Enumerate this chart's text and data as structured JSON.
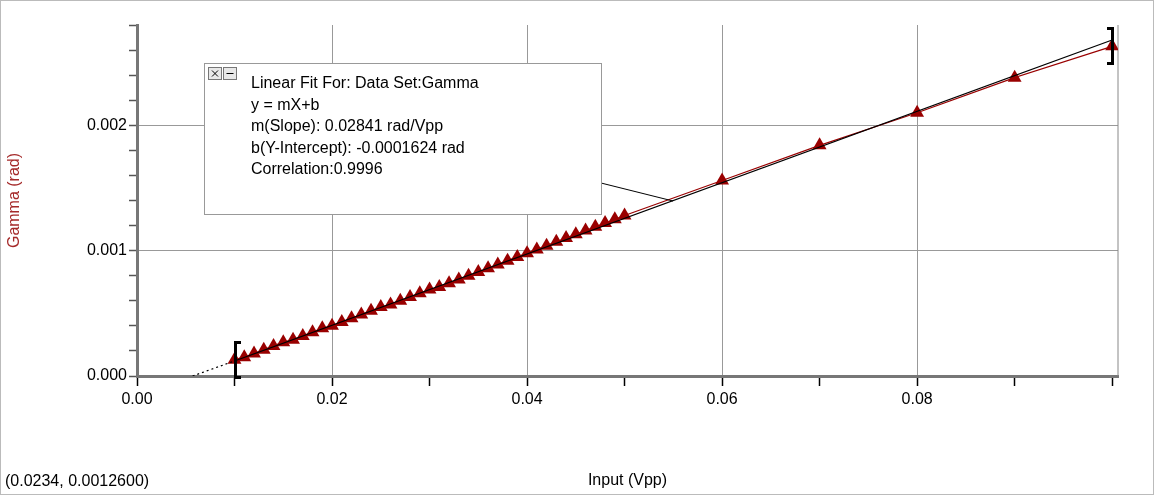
{
  "chart_data": {
    "type": "scatter",
    "xlabel": "Input (Vpp)",
    "ylabel": "Gamma (rad)",
    "xlim": [
      0,
      0.1006
    ],
    "ylim": [
      0,
      0.0028
    ],
    "xticks": [
      {
        "value": 0,
        "label": "0.00"
      },
      {
        "value": 0.01,
        "label": null
      },
      {
        "value": 0.02,
        "label": "0.02"
      },
      {
        "value": 0.03,
        "label": null
      },
      {
        "value": 0.04,
        "label": "0.04"
      },
      {
        "value": 0.05,
        "label": null
      },
      {
        "value": 0.06,
        "label": "0.06"
      },
      {
        "value": 0.07,
        "label": null
      },
      {
        "value": 0.08,
        "label": "0.08"
      },
      {
        "value": 0.09,
        "label": null
      },
      {
        "value": 0.1,
        "label": null
      }
    ],
    "yticks": [
      {
        "value": 0,
        "label": "0.000"
      },
      {
        "value": 0.0002,
        "label": null
      },
      {
        "value": 0.0004,
        "label": null
      },
      {
        "value": 0.0006,
        "label": null
      },
      {
        "value": 0.0008,
        "label": null
      },
      {
        "value": 0.001,
        "label": "0.001"
      },
      {
        "value": 0.0012,
        "label": null
      },
      {
        "value": 0.0014,
        "label": null
      },
      {
        "value": 0.0016,
        "label": null
      },
      {
        "value": 0.0018,
        "label": null
      },
      {
        "value": 0.002,
        "label": "0.002"
      },
      {
        "value": 0.0022,
        "label": null
      },
      {
        "value": 0.0024,
        "label": null
      },
      {
        "value": 0.0026,
        "label": null
      },
      {
        "value": 0.0028,
        "label": null
      }
    ],
    "grid": true,
    "legend": false,
    "series": [
      {
        "type": "line",
        "color": "#000000",
        "line_style": "dotted",
        "marker": "none",
        "x": [
          0.0057,
          0.01
        ],
        "values": [
          0,
          0.00012
        ]
      },
      {
        "type": "line",
        "color": "#000000",
        "line_style": "solid",
        "marker": "none",
        "x": [
          0.01,
          0.1
        ],
        "values": [
          0.00012,
          0.00268
        ]
      },
      {
        "type": "line",
        "color": "#990000",
        "line_style": "solid",
        "marker": "triangle",
        "x": [
          0.01,
          0.011,
          0.012,
          0.013,
          0.014,
          0.015,
          0.016,
          0.017,
          0.018,
          0.019,
          0.02,
          0.021,
          0.022,
          0.023,
          0.024,
          0.025,
          0.026,
          0.027,
          0.028,
          0.029,
          0.03,
          0.031,
          0.032,
          0.033,
          0.034,
          0.035,
          0.036,
          0.037,
          0.038,
          0.039,
          0.04,
          0.041,
          0.042,
          0.043,
          0.044,
          0.045,
          0.046,
          0.047,
          0.048,
          0.049,
          0.05,
          0.06,
          0.07,
          0.08,
          0.09,
          0.1
        ],
        "values": [
          0.00013,
          0.00015,
          0.00018,
          0.00021,
          0.00024,
          0.00027,
          0.00029,
          0.00032,
          0.00035,
          0.00038,
          0.0004,
          0.00043,
          0.00046,
          0.00049,
          0.00052,
          0.00055,
          0.00057,
          0.0006,
          0.00063,
          0.00066,
          0.00069,
          0.00071,
          0.00074,
          0.00077,
          0.0008,
          0.00083,
          0.00086,
          0.00089,
          0.00092,
          0.00095,
          0.00098,
          0.00101,
          0.00104,
          0.00107,
          0.0011,
          0.00113,
          0.00116,
          0.00119,
          0.00122,
          0.00125,
          0.00128,
          0.00156,
          0.00184,
          0.0021,
          0.00238,
          0.00263
        ]
      }
    ],
    "annotations": [
      "Linear Fit For:  Data Set:Gamma",
      "y = mX+b",
      "m(Slope): 0.02841 rad/Vpp",
      "b(Y-Intercept): -0.0001624 rad",
      "Correlation:0.9996",
      "(0.0234, 0.0012600)"
    ]
  }
}
